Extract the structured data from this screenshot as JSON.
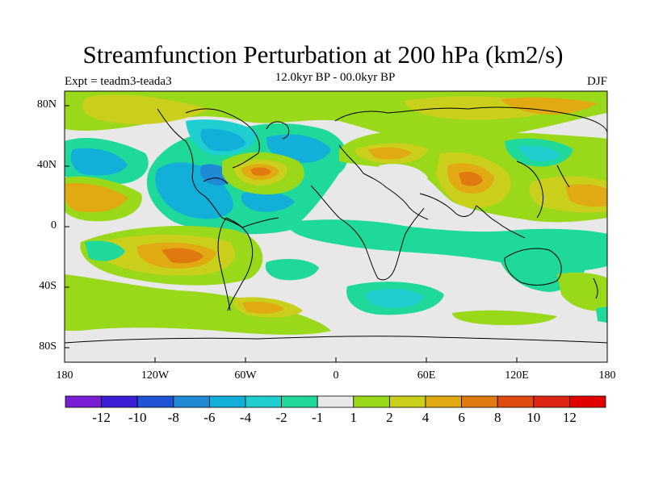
{
  "title": "Streamfunction Perturbation at 200 hPa (km2/s)",
  "subtitle": "12.0kyr BP - 00.0kyr BP",
  "expt_label": "Expt = teadm3-teada3",
  "season": "DJF",
  "lat_ticks": [
    "80N",
    "40N",
    "0",
    "40S",
    "80S"
  ],
  "lon_ticks": [
    "180",
    "120W",
    "60W",
    "0",
    "60E",
    "120E",
    "180"
  ],
  "colorbar": {
    "labels": [
      "-12",
      "-10",
      "-8",
      "-6",
      "-4",
      "-2",
      "-1",
      "1",
      "2",
      "4",
      "6",
      "8",
      "10",
      "12"
    ],
    "colors": [
      "#7b1fd6",
      "#3a1fd6",
      "#1f54d6",
      "#1f8ad6",
      "#12b0d8",
      "#1fcfcf",
      "#1fd99a",
      "#e8e8e8",
      "#9ad81a",
      "#c9cf1a",
      "#e1aa12",
      "#e07a10",
      "#e04c10",
      "#de2612",
      "#e00000"
    ]
  },
  "colors": {
    "background": "#e8e8e8",
    "coast": "#000000"
  },
  "icons": {
    "map": "world-coastline-map"
  }
}
